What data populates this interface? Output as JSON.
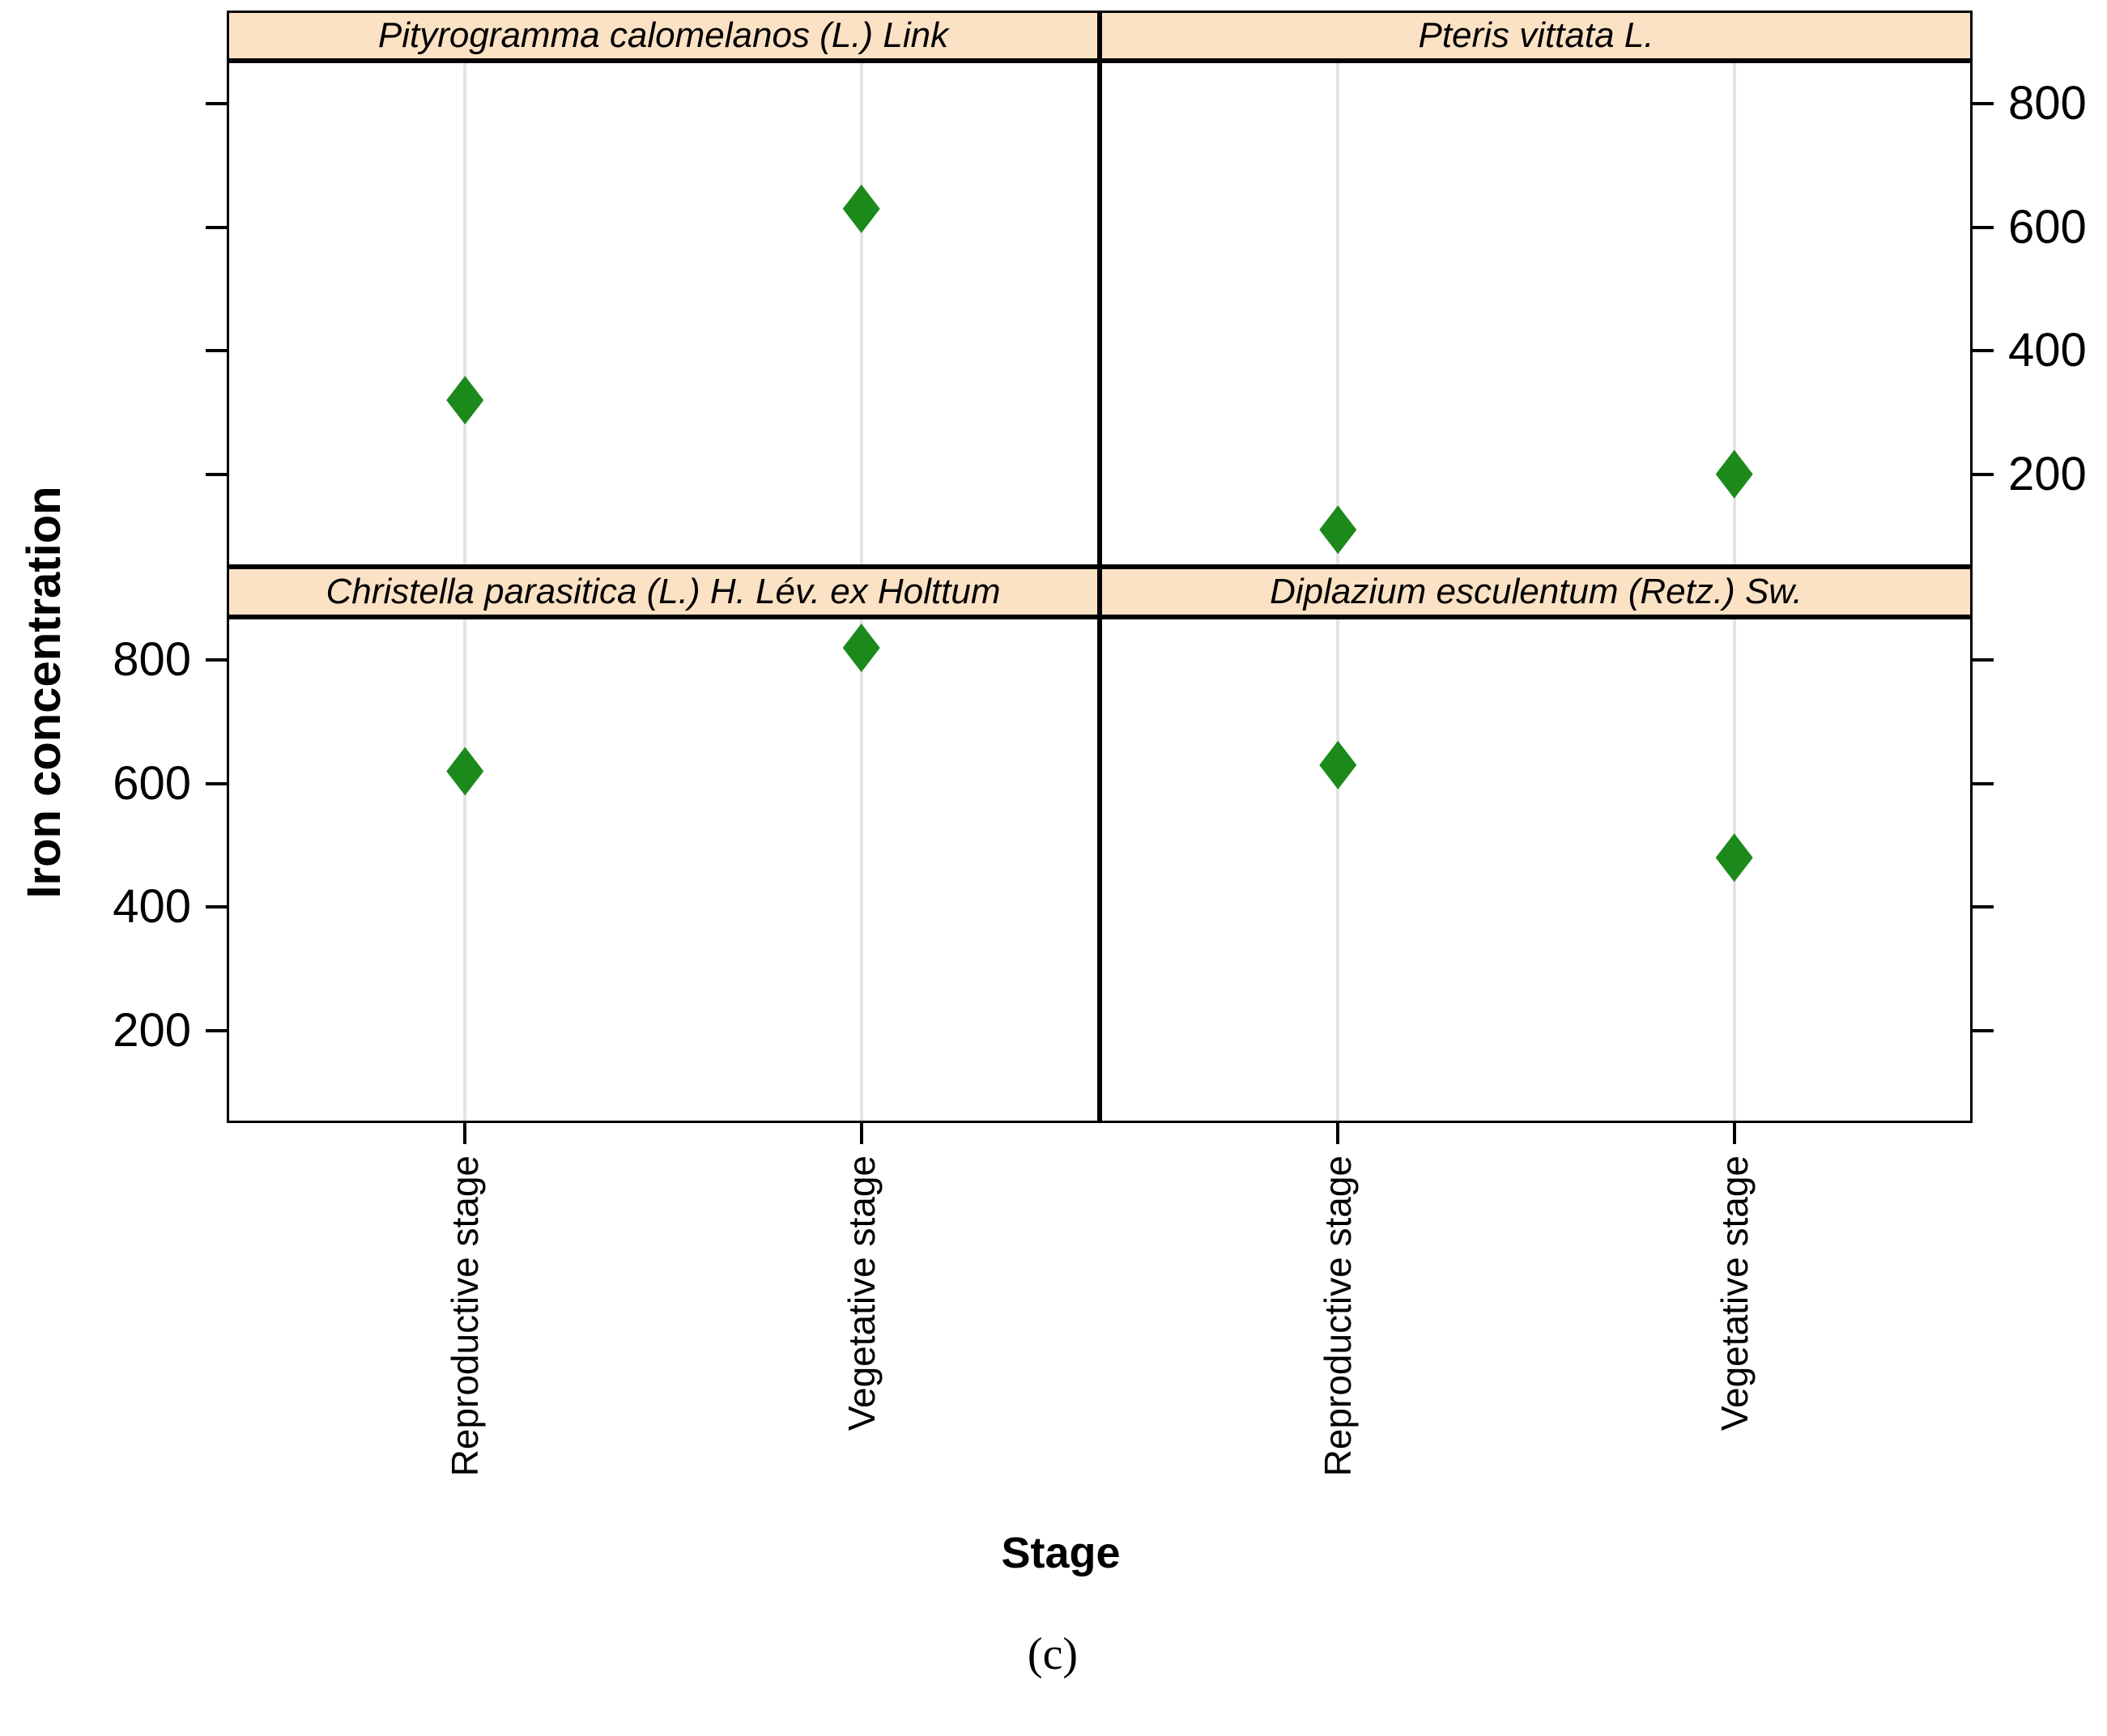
{
  "figure": {
    "kind": "trellis-dotplot",
    "caption": "(c)"
  },
  "chart_data": {
    "type": "scatter",
    "marker": "filled-diamond",
    "marker_color": "#1b8a1b",
    "strip_bg_color": "#fbe2c4",
    "gridline_color": "#e3e3e3",
    "border_color": "#000000",
    "trellis": {
      "rows": 2,
      "cols": 2
    },
    "xlabel": "Stage",
    "ylabel": "Iron concentration",
    "x_categories": [
      "Reproductive stage",
      "Vegetative stage"
    ],
    "ylim": [
      50,
      870
    ],
    "yticks": [
      200,
      400,
      600,
      800
    ],
    "ytick_labels_row0_side": "right",
    "ytick_labels_row1_side": "left",
    "grid": "vertical reference line at each category",
    "panels": [
      {
        "species": "Pityrogramma calomelanos (L.) Link",
        "grid_pos": [
          0,
          0
        ],
        "values": [
          320,
          630
        ]
      },
      {
        "species": "Pteris vittata L.",
        "grid_pos": [
          0,
          1
        ],
        "values": [
          110,
          200
        ]
      },
      {
        "species": "Christella parasitica (L.) H. Lév. ex Holttum",
        "grid_pos": [
          1,
          0
        ],
        "values": [
          620,
          820
        ]
      },
      {
        "species": "Diplazium esculentum (Retz.) Sw.",
        "grid_pos": [
          1,
          1
        ],
        "values": [
          630,
          480
        ]
      }
    ]
  }
}
